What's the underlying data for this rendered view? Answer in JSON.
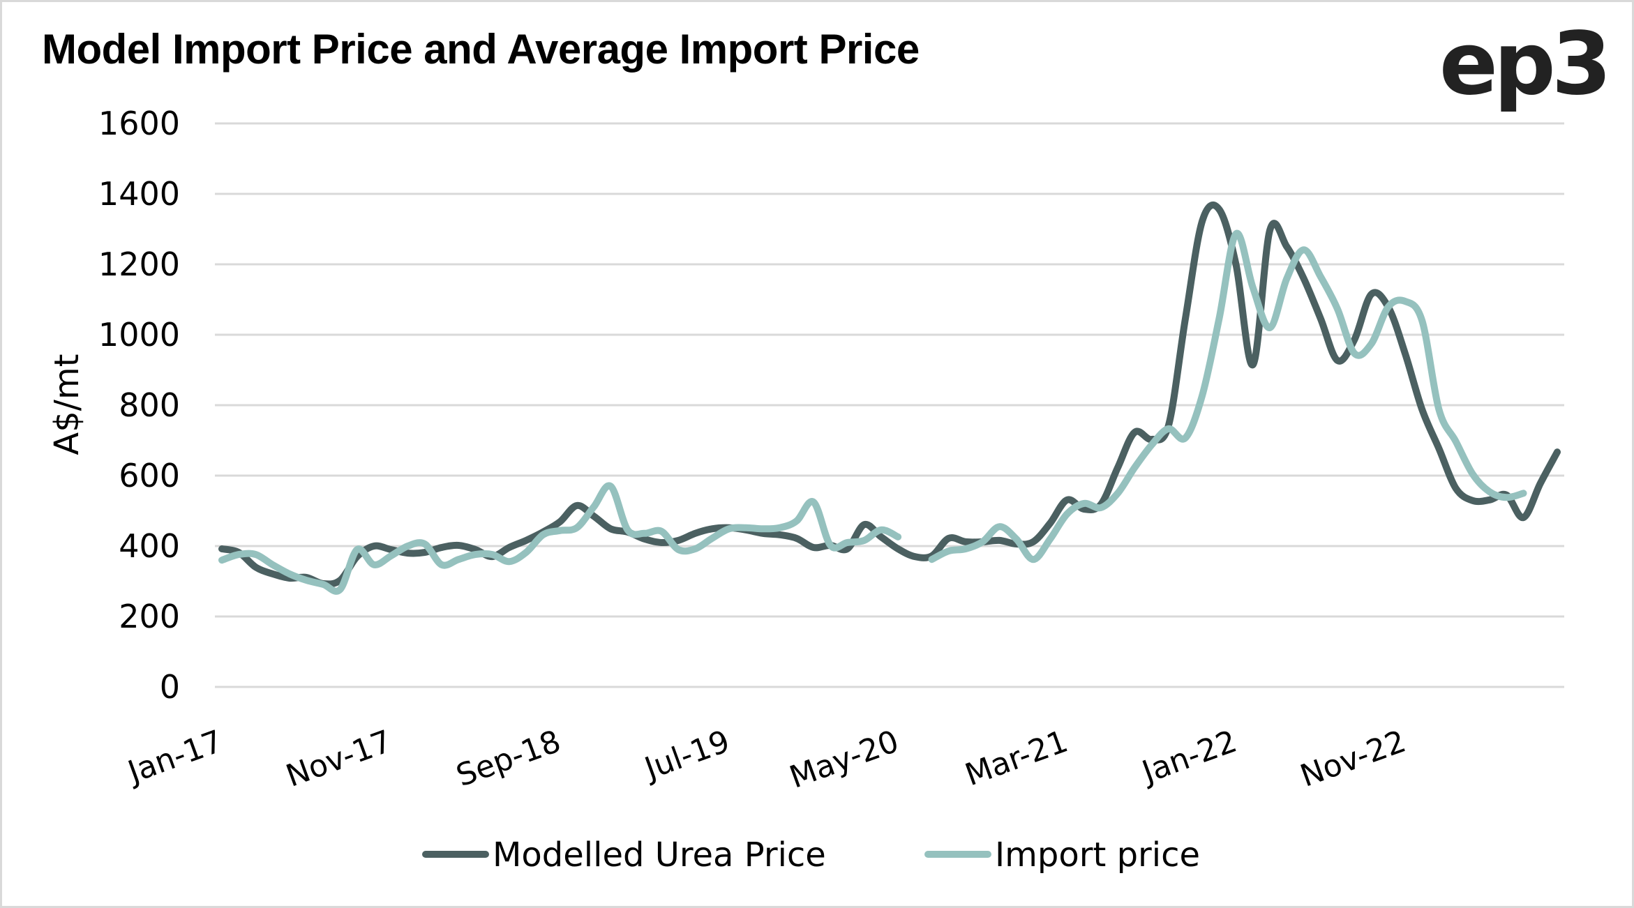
{
  "title": "Model Import Price and Average Import Price",
  "brand_logo": "ep3",
  "chart_data": {
    "type": "line",
    "title": "Model Import Price and Average Import Price",
    "xlabel": "",
    "ylabel": "A$/mt",
    "ylim": [
      0,
      1600
    ],
    "yticks": [
      0,
      200,
      400,
      600,
      800,
      1000,
      1200,
      1400,
      1600
    ],
    "grid": true,
    "legend_position": "bottom",
    "x_start": "Jan-17",
    "x_end": "Aug-23",
    "x_tick_labels": [
      "Jan-17",
      "Nov-17",
      "Sep-18",
      "Jul-19",
      "May-20",
      "Mar-21",
      "Jan-22",
      "Nov-22"
    ],
    "x_tick_interval_months": 10,
    "x": [
      "Jan-17",
      "Feb-17",
      "Mar-17",
      "Apr-17",
      "May-17",
      "Jun-17",
      "Jul-17",
      "Aug-17",
      "Sep-17",
      "Oct-17",
      "Nov-17",
      "Dec-17",
      "Jan-18",
      "Feb-18",
      "Mar-18",
      "Apr-18",
      "May-18",
      "Jun-18",
      "Jul-18",
      "Aug-18",
      "Sep-18",
      "Oct-18",
      "Nov-18",
      "Dec-18",
      "Jan-19",
      "Feb-19",
      "Mar-19",
      "Apr-19",
      "May-19",
      "Jun-19",
      "Jul-19",
      "Aug-19",
      "Sep-19",
      "Oct-19",
      "Nov-19",
      "Dec-19",
      "Jan-20",
      "Feb-20",
      "Mar-20",
      "Apr-20",
      "May-20",
      "Jun-20",
      "Jul-20",
      "Aug-20",
      "Sep-20",
      "Oct-20",
      "Nov-20",
      "Dec-20",
      "Jan-21",
      "Feb-21",
      "Mar-21",
      "Apr-21",
      "May-21",
      "Jun-21",
      "Jul-21",
      "Aug-21",
      "Sep-21",
      "Oct-21",
      "Nov-21",
      "Dec-21",
      "Jan-22",
      "Feb-22",
      "Mar-22",
      "Apr-22",
      "May-22",
      "Jun-22",
      "Jul-22",
      "Aug-22",
      "Sep-22",
      "Oct-22",
      "Nov-22",
      "Dec-22",
      "Jan-23",
      "Feb-23",
      "Mar-23",
      "Apr-23",
      "May-23",
      "Jun-23",
      "Jul-23",
      "Aug-23"
    ],
    "series": [
      {
        "name": "Modelled Urea Price",
        "color": "#4b6061",
        "values": [
          392,
          382,
          340,
          321,
          309,
          311,
          293,
          303,
          370,
          400,
          390,
          380,
          382,
          396,
          402,
          390,
          370,
          396,
          416,
          440,
          469,
          515,
          485,
          449,
          440,
          420,
          410,
          416,
          436,
          449,
          452,
          446,
          436,
          432,
          422,
          396,
          402,
          392,
          461,
          426,
          392,
          370,
          372,
          422,
          412,
          412,
          416,
          406,
          412,
          465,
          531,
          505,
          518,
          623,
          723,
          703,
          742,
          1046,
          1323,
          1356,
          1198,
          915,
          1297,
          1250,
          1160,
          1046,
          927,
          986,
          1115,
          1079,
          947,
          788,
          677,
          564,
          529,
          531,
          545,
          481,
          578,
          667
        ]
      },
      {
        "name": "Import price",
        "color": "#95c1be",
        "values": [
          360,
          376,
          376,
          347,
          321,
          303,
          291,
          277,
          390,
          347,
          372,
          400,
          406,
          347,
          362,
          376,
          376,
          356,
          382,
          432,
          444,
          452,
          511,
          570,
          446,
          436,
          442,
          390,
          392,
          422,
          449,
          452,
          449,
          452,
          471,
          525,
          402,
          410,
          416,
          446,
          426,
          null,
          362,
          386,
          392,
          412,
          455,
          420,
          362,
          420,
          491,
          521,
          509,
          550,
          623,
          687,
          733,
          707,
          828,
          1046,
          1287,
          1133,
          1020,
          1160,
          1241,
          1165,
          1073,
          947,
          974,
          1079,
          1095,
          1040,
          788,
          697,
          604,
          554,
          538,
          550,
          null,
          null
        ]
      }
    ]
  }
}
